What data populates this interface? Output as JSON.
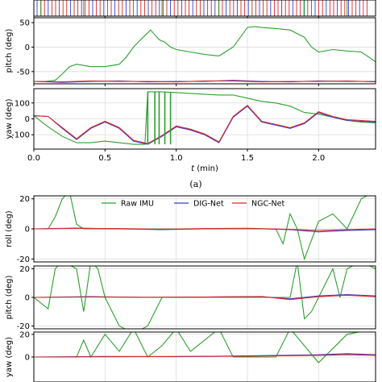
{
  "caption_a": "(a)",
  "colors": {
    "raw": "#2ca02c",
    "dig": "#3b3bd0",
    "ngc": "#d62728",
    "grid": "#dcdcdc"
  },
  "chart_data": [
    {
      "type": "line",
      "panel": "a-roll",
      "ylabel": "",
      "xlim": [
        0,
        2.4
      ],
      "ylim": [
        -20,
        20
      ],
      "xticks": [
        0.0,
        0.5,
        1.0,
        1.5,
        2.0
      ],
      "yticks": [],
      "series": []
    },
    {
      "type": "line",
      "panel": "a-pitch",
      "ylabel": "pitch (deg)",
      "xlim": [
        0,
        2.4
      ],
      "ylim": [
        -75,
        60
      ],
      "xticks": [
        0.0,
        0.5,
        1.0,
        1.5,
        2.0
      ],
      "yticks": [
        -50,
        0,
        50
      ],
      "series": [
        {
          "key": "raw",
          "x": [
            0,
            0.08,
            0.15,
            0.2,
            0.25,
            0.3,
            0.4,
            0.5,
            0.6,
            0.65,
            0.7,
            0.75,
            0.82,
            0.85,
            0.88,
            0.92,
            0.96,
            1.0,
            1.1,
            1.2,
            1.3,
            1.4,
            1.45,
            1.5,
            1.55,
            1.6,
            1.7,
            1.8,
            1.9,
            1.95,
            2.0,
            2.1,
            2.2,
            2.3,
            2.35,
            2.4
          ],
          "y": [
            -70,
            -70,
            -68,
            -55,
            -40,
            -35,
            -40,
            -40,
            -35,
            -20,
            0,
            15,
            35,
            25,
            15,
            10,
            0,
            -5,
            -10,
            -15,
            -18,
            0,
            20,
            40,
            42,
            40,
            38,
            35,
            20,
            0,
            -10,
            -5,
            -8,
            -10,
            -20,
            -30
          ]
        },
        {
          "key": "dig",
          "x": [
            0,
            0.2,
            0.4,
            0.6,
            0.8,
            1.0,
            1.2,
            1.4,
            1.6,
            1.8,
            2.0,
            2.2,
            2.4
          ],
          "y": [
            -70,
            -72,
            -70,
            -69,
            -71,
            -70,
            -70,
            -68,
            -70,
            -71,
            -69,
            -70,
            -70
          ]
        },
        {
          "key": "ngc",
          "x": [
            0,
            0.2,
            0.4,
            0.6,
            0.8,
            1.0,
            1.2,
            1.4,
            1.6,
            1.8,
            2.0,
            2.2,
            2.4
          ],
          "y": [
            -70,
            -71,
            -69,
            -70,
            -70,
            -71,
            -69,
            -69,
            -71,
            -70,
            -70,
            -69,
            -71
          ]
        }
      ]
    },
    {
      "type": "line",
      "panel": "a-yaw",
      "ylabel": "yaw (deg)",
      "xlabel": "t (min)",
      "xlim": [
        0,
        2.4
      ],
      "ylim": [
        -190,
        190
      ],
      "xticks": [
        0.0,
        0.5,
        1.0,
        1.5,
        2.0
      ],
      "xticklabels": [
        "0.0",
        "0.5",
        "1.0",
        "1.5",
        "2.0"
      ],
      "yticks": [
        -100,
        0,
        100
      ],
      "series": [
        {
          "key": "raw",
          "x": [
            0,
            0.1,
            0.2,
            0.3,
            0.4,
            0.5,
            0.6,
            0.7,
            0.78,
            0.8,
            0.9,
            1.0,
            1.1,
            1.2,
            1.3,
            1.4,
            1.5,
            1.6,
            1.7,
            1.8,
            1.9,
            2.0,
            2.1,
            2.2,
            2.3,
            2.4
          ],
          "y": [
            20,
            -50,
            -110,
            -150,
            -150,
            -140,
            -150,
            -160,
            -160,
            170,
            170,
            165,
            160,
            155,
            150,
            150,
            130,
            110,
            100,
            80,
            40,
            30,
            10,
            -10,
            -20,
            -25
          ]
        },
        {
          "key": "dig",
          "x": [
            0,
            0.1,
            0.2,
            0.3,
            0.4,
            0.5,
            0.6,
            0.7,
            0.8,
            0.9,
            1.0,
            1.1,
            1.2,
            1.3,
            1.4,
            1.5,
            1.6,
            1.7,
            1.8,
            1.9,
            2.0,
            2.1,
            2.2,
            2.3,
            2.4
          ],
          "y": [
            20,
            15,
            -60,
            -130,
            -60,
            -20,
            -60,
            -140,
            -160,
            -110,
            -50,
            -70,
            -100,
            -150,
            10,
            80,
            -20,
            -40,
            -60,
            -30,
            40,
            10,
            -10,
            -15,
            -20
          ]
        },
        {
          "key": "ngc",
          "x": [
            0,
            0.1,
            0.2,
            0.3,
            0.4,
            0.5,
            0.6,
            0.7,
            0.8,
            0.9,
            1.0,
            1.1,
            1.2,
            1.3,
            1.4,
            1.5,
            1.6,
            1.7,
            1.8,
            1.9,
            2.0,
            2.1,
            2.2,
            2.3,
            2.4
          ],
          "y": [
            20,
            15,
            -55,
            -125,
            -55,
            -15,
            -55,
            -135,
            -155,
            -105,
            -45,
            -65,
            -95,
            -145,
            15,
            85,
            -15,
            -35,
            -55,
            -25,
            45,
            15,
            -5,
            -10,
            -15
          ]
        }
      ]
    },
    {
      "type": "line",
      "panel": "b-roll",
      "ylabel": "roll (deg)",
      "xlim": [
        0,
        2.4
      ],
      "ylim": [
        -22,
        22
      ],
      "yticks": [
        -20,
        0,
        20
      ],
      "legend": [
        "Raw IMU",
        "DIG-Net",
        "NGC-Net"
      ],
      "legend_position": "top",
      "series": [
        {
          "key": "raw",
          "name": "Raw IMU",
          "x": [
            0,
            0.1,
            0.15,
            0.2,
            0.25,
            0.3,
            0.35,
            0.5,
            1.0,
            1.5,
            1.7,
            1.75,
            1.8,
            1.85,
            1.9,
            2.0,
            2.1,
            2.2,
            2.3,
            2.4
          ],
          "y": [
            0,
            0,
            8,
            20,
            25,
            3,
            0,
            0,
            0,
            0,
            0,
            -10,
            10,
            0,
            -20,
            5,
            10,
            0,
            20,
            25
          ]
        },
        {
          "key": "dig",
          "name": "DIG-Net",
          "x": [
            0,
            0.3,
            0.6,
            0.9,
            1.2,
            1.5,
            1.8,
            2.0,
            2.2,
            2.4
          ],
          "y": [
            0,
            0.5,
            0,
            -0.5,
            0,
            0.3,
            -0.5,
            -2,
            -1,
            -0.5
          ]
        },
        {
          "key": "ngc",
          "name": "NGC-Net",
          "x": [
            0,
            0.3,
            0.6,
            0.9,
            1.2,
            1.5,
            1.8,
            2.0,
            2.2,
            2.4
          ],
          "y": [
            0,
            0.3,
            0.2,
            -0.3,
            0.2,
            0.4,
            -0.3,
            -1,
            -0.5,
            0
          ]
        }
      ]
    },
    {
      "type": "line",
      "panel": "b-pitch",
      "ylabel": "pitch (deg)",
      "xlim": [
        0,
        2.4
      ],
      "ylim": [
        -22,
        22
      ],
      "yticks": [
        -20,
        0,
        20
      ],
      "series": [
        {
          "key": "raw",
          "x": [
            0,
            0.1,
            0.15,
            0.2,
            0.3,
            0.35,
            0.4,
            0.45,
            0.5,
            0.6,
            0.7,
            0.8,
            0.9,
            1.0,
            1.5,
            1.8,
            1.85,
            1.9,
            1.95,
            2.1,
            2.15,
            2.2,
            2.3,
            2.4
          ],
          "y": [
            0,
            -8,
            20,
            25,
            20,
            -10,
            25,
            20,
            0,
            -20,
            -25,
            -20,
            0,
            0,
            0,
            0,
            25,
            -15,
            -10,
            20,
            0,
            20,
            25,
            20
          ]
        },
        {
          "key": "dig",
          "x": [
            0,
            0.4,
            0.8,
            1.2,
            1.6,
            1.8,
            2.0,
            2.2,
            2.4
          ],
          "y": [
            0,
            0.5,
            0,
            0.3,
            0.5,
            -1,
            1,
            2,
            1
          ]
        },
        {
          "key": "ngc",
          "x": [
            0,
            0.4,
            0.8,
            1.2,
            1.6,
            1.8,
            2.0,
            2.2,
            2.4
          ],
          "y": [
            0,
            0.3,
            0.1,
            0.2,
            0.6,
            -1.5,
            0.5,
            1.5,
            0.5
          ]
        }
      ]
    },
    {
      "type": "line",
      "panel": "b-yaw",
      "ylabel": "yaw (deg)",
      "xlim": [
        0,
        2.4
      ],
      "ylim": [
        -22,
        22
      ],
      "yticks": [
        0,
        20
      ],
      "series": [
        {
          "key": "raw",
          "x": [
            0,
            0.3,
            0.35,
            0.4,
            0.5,
            0.6,
            0.7,
            0.8,
            0.9,
            1.0,
            1.1,
            1.2,
            1.3,
            1.4,
            1.5,
            1.7,
            1.8,
            2.0,
            2.2,
            2.4
          ],
          "y": [
            0,
            0,
            15,
            0,
            20,
            5,
            25,
            0,
            10,
            25,
            5,
            15,
            25,
            0,
            0,
            0,
            25,
            -5,
            20,
            25
          ]
        },
        {
          "key": "dig",
          "x": [
            0,
            0.5,
            1.0,
            1.5,
            2.0,
            2.2,
            2.4
          ],
          "y": [
            0,
            0.5,
            0.3,
            1,
            2,
            3,
            2
          ]
        },
        {
          "key": "ngc",
          "x": [
            0,
            0.5,
            1.0,
            1.5,
            2.0,
            2.2,
            2.4
          ],
          "y": [
            0,
            0.2,
            0.5,
            0.8,
            1.5,
            2,
            1.5
          ]
        }
      ]
    }
  ]
}
